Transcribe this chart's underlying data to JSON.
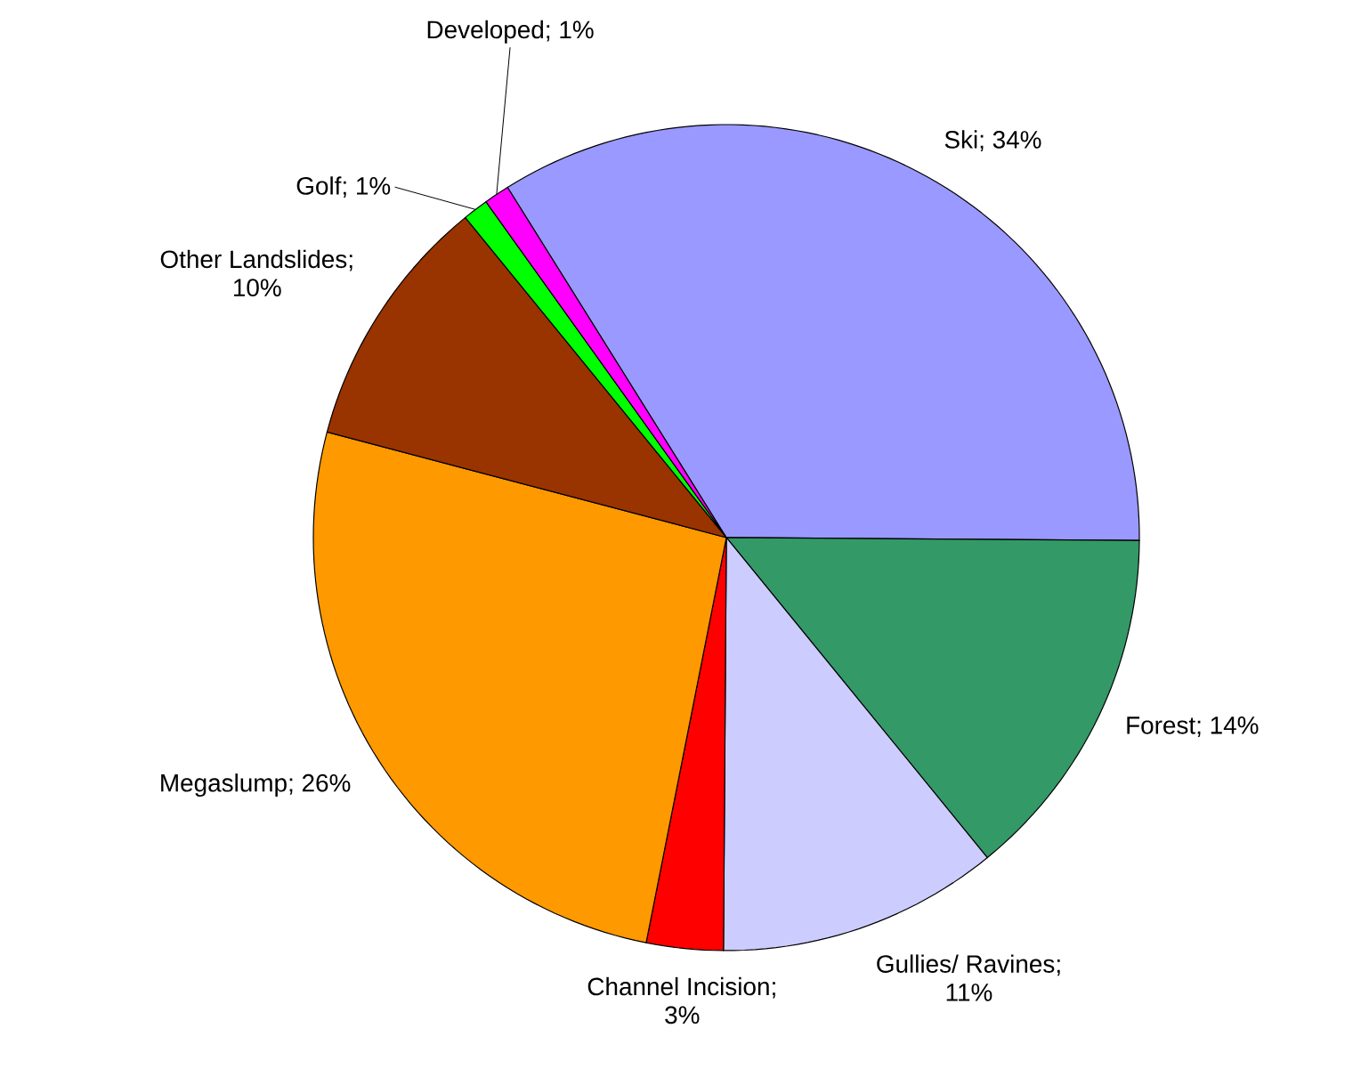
{
  "chart_data": {
    "type": "pie",
    "categories": [
      "Ski",
      "Forest",
      "Gullies/ Ravines",
      "Channel Incision",
      "Megaslump",
      "Other Landslides",
      "Golf",
      "Developed"
    ],
    "values": [
      34,
      14,
      11,
      3,
      26,
      10,
      1,
      1
    ],
    "value_labels": [
      "; 34%",
      "; 14%",
      "; 11%",
      "; 3%",
      "; 26%",
      "; 10%",
      "; 1%",
      "; 1%"
    ],
    "colors": [
      "#9999ff",
      "#339966",
      "#ccccff",
      "#ff0000",
      "#ff9900",
      "#993300",
      "#00ff00",
      "#ff00ff"
    ]
  }
}
